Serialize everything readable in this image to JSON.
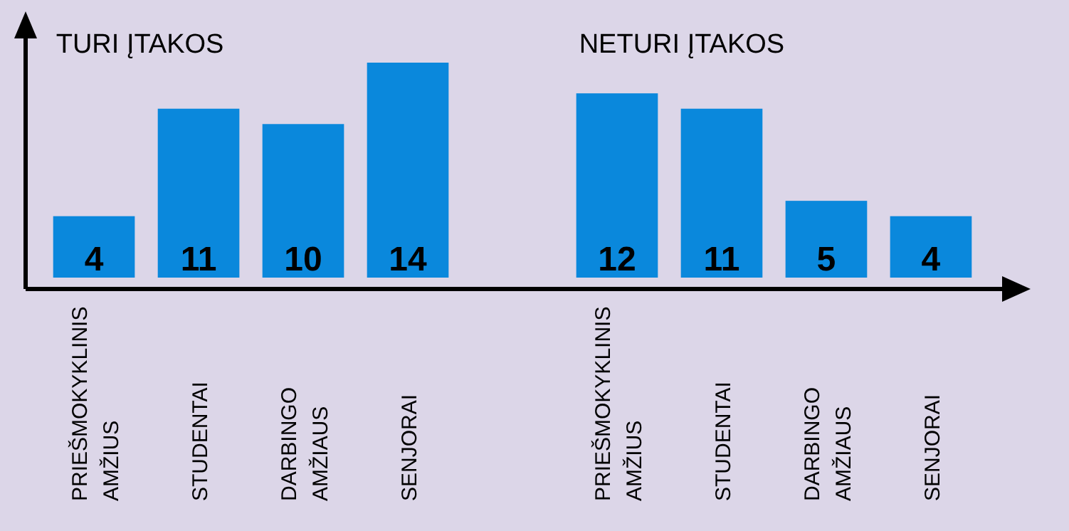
{
  "chart_data": {
    "type": "bar",
    "categories": [
      "PRIEŠMOKYKLINIS AMŽIUS",
      "STUDENTAI",
      "DARBINGO AMŽIAUS",
      "SENJORAI",
      null,
      "PRIEŠMOKYKLINIS AMŽIUS",
      "STUDENTAI",
      "DARBINGO AMŽIAUS",
      "SENJORAI"
    ],
    "values": [
      4,
      11,
      10,
      14,
      null,
      12,
      11,
      5,
      4
    ],
    "color": "#0a88dc",
    "data_labels": true,
    "annotations": [
      "TURI ĮTAKOS",
      "NETURI ĮTAKOS"
    ]
  }
}
